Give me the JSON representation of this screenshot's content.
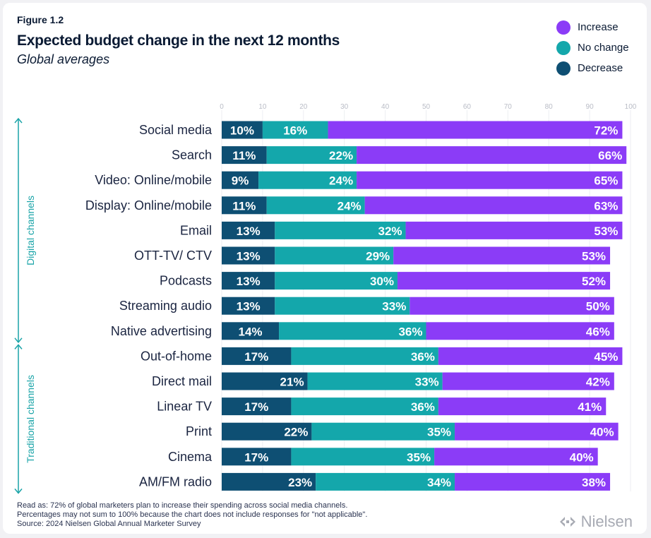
{
  "figure_label": "Figure 1.2",
  "brand": "Nielsen",
  "legend": [
    {
      "label": "Increase",
      "color": "#8b3cf7"
    },
    {
      "label": "No change",
      "color": "#14a7ab"
    },
    {
      "label": "Decrease",
      "color": "#0e4f73"
    }
  ],
  "footnote": {
    "line1": "Read as: 72% of global marketers plan to increase their spending across social media channels.",
    "line2": "Percentages may not sum to 100% because the chart does not include responses for \"not applicable\".",
    "line3": "Source: 2024 Nielsen Global Annual Marketer Survey"
  },
  "chart_data": {
    "type": "bar",
    "orientation": "horizontal",
    "stacked": true,
    "title": "Expected budget change in the next 12 months",
    "subtitle": "Global averages",
    "xlim": [
      0,
      100
    ],
    "xticks": [
      0,
      10,
      20,
      30,
      40,
      50,
      60,
      70,
      80,
      90,
      100
    ],
    "groups": [
      {
        "label": "Digital channels",
        "categories": [
          "Social media",
          "Search",
          "Video: Online/mobile",
          "Display: Online/mobile",
          "Email",
          "OTT-TV/ CTV",
          "Podcasts",
          "Streaming audio",
          "Native advertising"
        ]
      },
      {
        "label": "Traditional channels",
        "categories": [
          "Out-of-home",
          "Direct mail",
          "Linear TV",
          "Print",
          "Cinema",
          "AM/FM radio"
        ]
      }
    ],
    "categories": [
      "Social media",
      "Search",
      "Video: Online/mobile",
      "Display: Online/mobile",
      "Email",
      "OTT-TV/ CTV",
      "Podcasts",
      "Streaming audio",
      "Native advertising",
      "Out-of-home",
      "Direct mail",
      "Linear TV",
      "Print",
      "Cinema",
      "AM/FM radio"
    ],
    "series": [
      {
        "name": "Decrease",
        "color": "#0e4f73",
        "values": [
          10,
          11,
          9,
          11,
          13,
          13,
          13,
          13,
          14,
          17,
          21,
          17,
          22,
          17,
          23
        ]
      },
      {
        "name": "No change",
        "color": "#14a7ab",
        "values": [
          16,
          22,
          24,
          24,
          32,
          29,
          30,
          33,
          36,
          36,
          33,
          36,
          35,
          35,
          34
        ]
      },
      {
        "name": "Increase",
        "color": "#8b3cf7",
        "values": [
          72,
          66,
          65,
          63,
          53,
          53,
          52,
          50,
          46,
          45,
          42,
          41,
          40,
          40,
          38
        ]
      }
    ],
    "value_suffix": "%"
  }
}
